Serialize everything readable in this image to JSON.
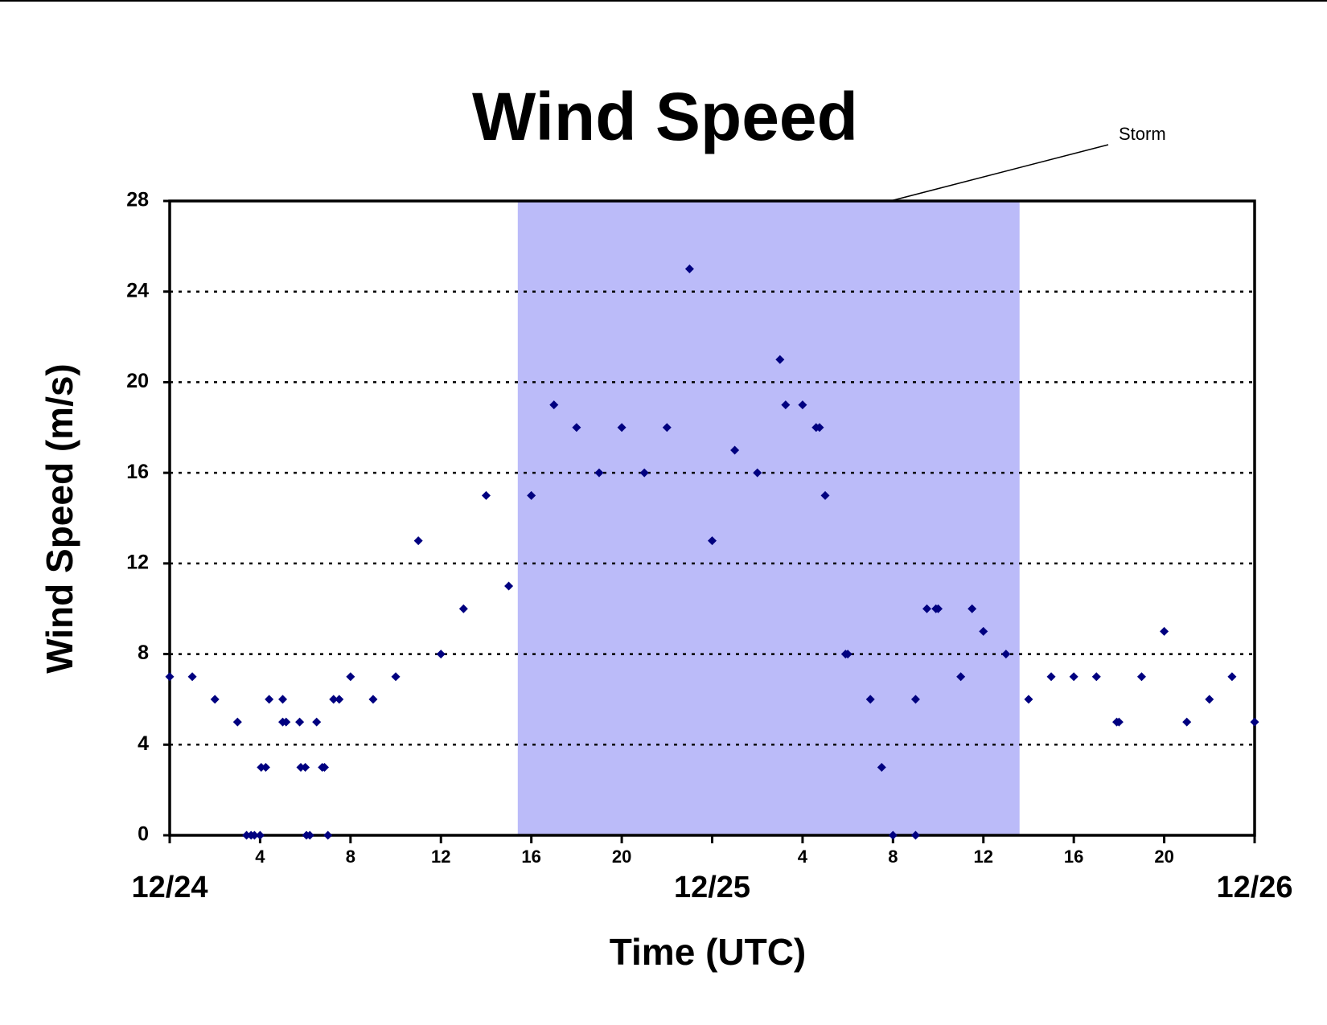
{
  "chart_data": {
    "type": "scatter",
    "title": "Wind Speed",
    "x_label": "Time (UTC)",
    "y_label": "Wind Speed (m/s)",
    "annotation": {
      "text": "Storm",
      "xlim": [
        15.4,
        37.6
      ],
      "color": "#bbbbf9"
    },
    "series": [
      {
        "color": "#000080",
        "x": [
          0,
          1,
          2,
          3,
          3.4,
          3.6,
          3.75,
          4,
          4.05,
          4.25,
          4.4,
          5,
          5,
          5.15,
          5.75,
          5.8,
          6,
          6.05,
          6.2,
          6.5,
          6.75,
          6.85,
          7,
          7.25,
          7.5,
          8,
          9,
          10,
          11,
          12,
          13,
          14,
          15,
          16,
          17,
          18,
          19,
          20,
          21,
          22,
          23,
          24,
          25,
          26,
          27,
          27.25,
          28,
          28.6,
          28.75,
          29,
          29.9,
          30,
          31,
          31.5,
          32,
          33,
          33,
          33.5,
          33.9,
          34,
          35,
          35.5,
          36,
          37,
          38,
          39,
          40,
          41,
          41.9,
          42,
          43,
          44,
          45,
          46,
          47,
          48
        ],
        "values": [
          7,
          7,
          6,
          5,
          0,
          0,
          0,
          0,
          3,
          3,
          6,
          6,
          5,
          5,
          5,
          3,
          3,
          0,
          0,
          5,
          3,
          3,
          0,
          6,
          6,
          7,
          6,
          7,
          13,
          8,
          10,
          15,
          11,
          15,
          19,
          18,
          16,
          18,
          16,
          18,
          25,
          13,
          17,
          16,
          21,
          19,
          19,
          18,
          18,
          15,
          8,
          8,
          6,
          3,
          0,
          6,
          0,
          10,
          10,
          10,
          7,
          10,
          9,
          8,
          6,
          7,
          7,
          7,
          5,
          5,
          7,
          9,
          5,
          6,
          7,
          5
        ]
      }
    ],
    "xlim": [
      0,
      48
    ],
    "ylim": [
      0,
      28
    ],
    "xticks": [
      {
        "value": 0,
        "label": "12/24"
      },
      4,
      8,
      12,
      16,
      20,
      {
        "value": 24,
        "label": "12/25"
      },
      {
        "value": 28,
        "label": "4"
      },
      {
        "value": 32,
        "label": "8"
      },
      {
        "value": 36,
        "label": "12"
      },
      {
        "value": 40,
        "label": "16"
      },
      {
        "value": 44,
        "label": "20"
      },
      {
        "value": 48,
        "label": "12/26"
      }
    ],
    "yticks": [
      0,
      4,
      8,
      12,
      16,
      20,
      24,
      28
    ],
    "grid": true
  }
}
